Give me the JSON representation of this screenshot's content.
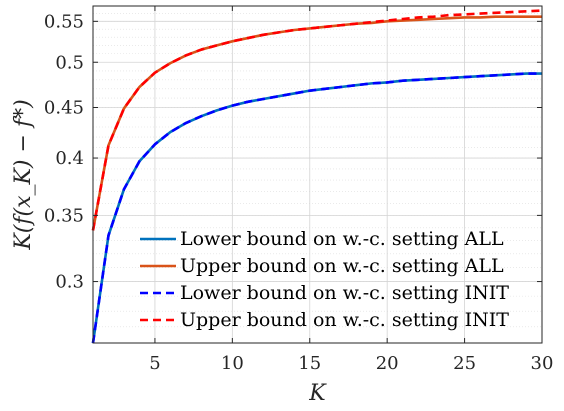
{
  "chart_data": {
    "type": "line",
    "title": "",
    "xlabel": "K",
    "ylabel": "K(f(x_K) − f*)",
    "xlim": [
      1,
      30
    ],
    "ylim": [
      0.26,
      0.57
    ],
    "y_scale": "log",
    "grid": true,
    "minor_grid": true,
    "legend_position": "bottom-right",
    "x_ticks": [
      5,
      10,
      15,
      20,
      25,
      30
    ],
    "x_tick_labels": [
      "5",
      "10",
      "15",
      "20",
      "25",
      "30"
    ],
    "y_ticks": [
      0.3,
      0.35,
      0.4,
      0.45,
      0.5,
      0.55
    ],
    "y_tick_labels": [
      "0.3",
      "0.35",
      "0.4",
      "0.45",
      "0.5",
      "0.55"
    ],
    "x": [
      1,
      2,
      3,
      4,
      5,
      6,
      7,
      8,
      9,
      10,
      11,
      12,
      13,
      14,
      15,
      16,
      17,
      18,
      19,
      20,
      21,
      22,
      23,
      24,
      25,
      26,
      27,
      28,
      29,
      30
    ],
    "series": [
      {
        "name": "Lower bound on w.-c. setting ALL",
        "color": "#0072BD",
        "dash": "solid",
        "values": [
          0.26,
          0.334,
          0.372,
          0.397,
          0.413,
          0.425,
          0.434,
          0.441,
          0.447,
          0.452,
          0.456,
          0.459,
          0.462,
          0.465,
          0.468,
          0.47,
          0.472,
          0.474,
          0.476,
          0.477,
          0.479,
          0.48,
          0.481,
          0.482,
          0.483,
          0.484,
          0.485,
          0.486,
          0.487,
          0.487
        ]
      },
      {
        "name": "Upper bound on w.-c. setting ALL",
        "color": "#D95319",
        "dash": "solid",
        "values": [
          0.338,
          0.412,
          0.449,
          0.472,
          0.488,
          0.499,
          0.508,
          0.515,
          0.52,
          0.525,
          0.529,
          0.533,
          0.536,
          0.539,
          0.541,
          0.543,
          0.545,
          0.547,
          0.548,
          0.55,
          0.551,
          0.552,
          0.553,
          0.554,
          0.555,
          0.555,
          0.556,
          0.556,
          0.556,
          0.556
        ]
      },
      {
        "name": "Lower bound on w.-c. setting INIT",
        "color": "#0000FF",
        "dash": "dashed",
        "values": [
          0.26,
          0.334,
          0.372,
          0.397,
          0.413,
          0.425,
          0.434,
          0.441,
          0.447,
          0.452,
          0.456,
          0.459,
          0.462,
          0.465,
          0.468,
          0.47,
          0.472,
          0.474,
          0.476,
          0.477,
          0.479,
          0.48,
          0.481,
          0.482,
          0.483,
          0.484,
          0.485,
          0.486,
          0.487,
          0.487
        ]
      },
      {
        "name": "Upper bound on w.-c. setting INIT",
        "color": "#FF0000",
        "dash": "dashed",
        "values": [
          0.338,
          0.412,
          0.449,
          0.472,
          0.488,
          0.499,
          0.508,
          0.515,
          0.52,
          0.525,
          0.529,
          0.533,
          0.536,
          0.539,
          0.541,
          0.543,
          0.545,
          0.547,
          0.549,
          0.551,
          0.553,
          0.555,
          0.556,
          0.558,
          0.559,
          0.56,
          0.561,
          0.562,
          0.563,
          0.564
        ]
      }
    ]
  }
}
